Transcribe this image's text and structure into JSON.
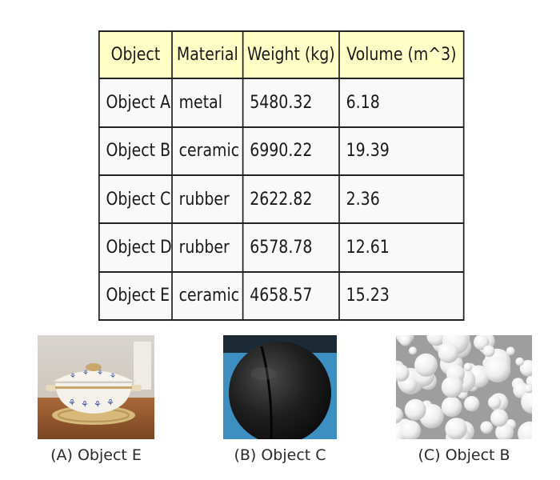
{
  "table": {
    "headers": [
      "Object",
      "Material",
      "Weight (kg)",
      "Volume (m^3)"
    ],
    "rows": [
      [
        "Object A",
        "metal",
        "5480.32",
        "6.18"
      ],
      [
        "Object B",
        "ceramic",
        "6990.22",
        "19.39"
      ],
      [
        "Object C",
        "rubber",
        "2622.82",
        "2.36"
      ],
      [
        "Object D",
        "rubber",
        "6578.78",
        "12.61"
      ],
      [
        "Object E",
        "ceramic",
        "4658.57",
        "15.23"
      ]
    ]
  },
  "images": [
    {
      "caption": "(A) Object E",
      "depicts": "ceramic-pot"
    },
    {
      "caption": "(B) Object C",
      "depicts": "rubber-ball"
    },
    {
      "caption": "(C) Object B",
      "depicts": "ceramic-balls"
    }
  ]
}
